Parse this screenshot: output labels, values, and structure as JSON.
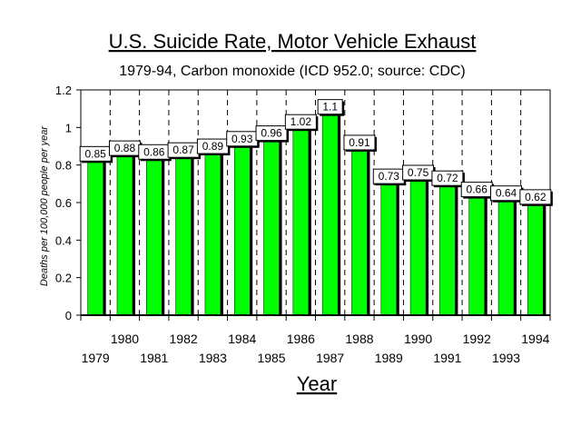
{
  "chart_data": {
    "type": "bar",
    "title": "U.S. Suicide Rate, Motor Vehicle Exhaust",
    "subtitle": "1979-94, Carbon monoxide (ICD 952.0; source: CDC)",
    "xlabel": "Year",
    "ylabel": "Deaths per 100,000 people per year",
    "categories": [
      "1979",
      "1980",
      "1981",
      "1982",
      "1983",
      "1984",
      "1985",
      "1986",
      "1987",
      "1988",
      "1989",
      "1990",
      "1991",
      "1992",
      "1993",
      "1994"
    ],
    "values": [
      0.85,
      0.88,
      0.86,
      0.87,
      0.89,
      0.93,
      0.96,
      1.02,
      1.1,
      0.91,
      0.73,
      0.75,
      0.72,
      0.66,
      0.64,
      0.62
    ],
    "value_labels": [
      "0.85",
      "0.88",
      "0.86",
      "0.87",
      "0.89",
      "0.93",
      "0.96",
      "1.02",
      "1.1",
      "0.91",
      "0.73",
      "0.75",
      "0.72",
      "0.66",
      "0.64",
      "0.62"
    ],
    "ylim": [
      0,
      1.2
    ],
    "yticks": [
      "0",
      "0.2",
      "0.4",
      "0.6",
      "0.8",
      "1",
      "1.2"
    ],
    "bar_color": "#00ff00",
    "bar_shadow_color": "#000000",
    "grid": "vertical dashed"
  }
}
